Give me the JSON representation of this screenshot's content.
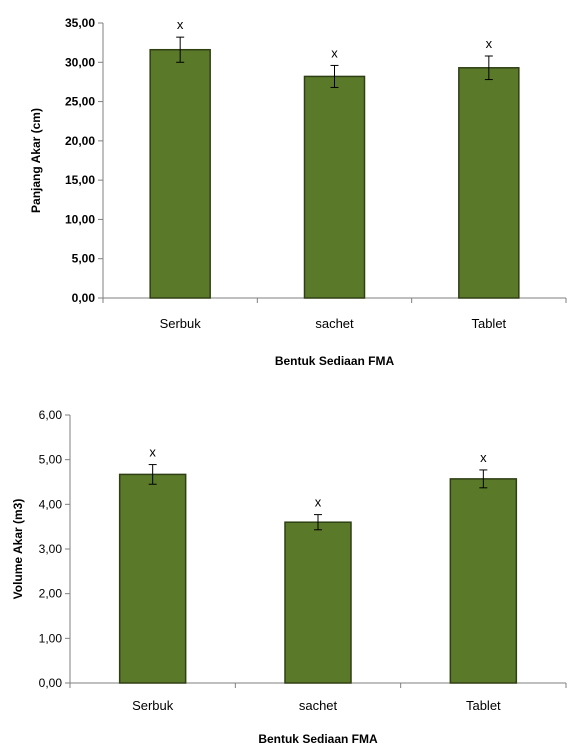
{
  "chart_data": [
    {
      "type": "bar",
      "categories": [
        "Serbuk",
        "sachet",
        "Tablet"
      ],
      "values": [
        31.6,
        28.2,
        29.3
      ],
      "errors": [
        1.6,
        1.4,
        1.5
      ],
      "annotations": [
        "x",
        "x",
        "x"
      ],
      "xlabel": "Bentuk Sediaan FMA",
      "ylabel": "Panjang Akar (cm)",
      "ylim": [
        0,
        35
      ],
      "yticks": [
        "0,00",
        "5,00",
        "10,00",
        "15,00",
        "20,00",
        "25,00",
        "30,00",
        "35,00"
      ],
      "bar_color": "#5a7a2a",
      "grid": false
    },
    {
      "type": "bar",
      "categories": [
        "Serbuk",
        "sachet",
        "Tablet"
      ],
      "values": [
        4.67,
        3.6,
        4.57
      ],
      "errors": [
        0.22,
        0.17,
        0.2
      ],
      "annotations": [
        "x",
        "x",
        "x"
      ],
      "xlabel": "Bentuk Sediaan FMA",
      "ylabel": "Volume Akar (m3)",
      "ylim": [
        0,
        6
      ],
      "yticks": [
        "0,00",
        "1,00",
        "2,00",
        "3,00",
        "4,00",
        "5,00",
        "6,00"
      ],
      "bar_color": "#5a7a2a",
      "grid": false
    }
  ]
}
